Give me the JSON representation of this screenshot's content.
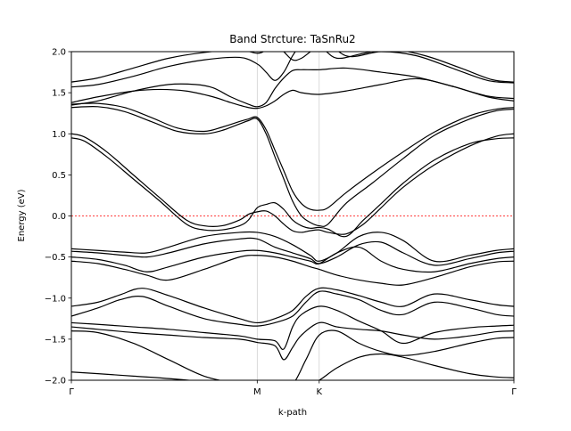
{
  "chart_data": {
    "type": "line",
    "title": "Band Strcture: TaSnRu2",
    "xlabel": "k-path",
    "ylabel": "Energy (eV)",
    "ylim": [
      -2.0,
      2.0
    ],
    "xlim": [
      0,
      1
    ],
    "yticks": [
      -2.0,
      -1.5,
      -1.0,
      -0.5,
      0.0,
      0.5,
      1.0,
      1.5,
      2.0
    ],
    "ytick_labels": [
      "−2.0",
      "−1.5",
      "−1.0",
      "−0.5",
      "0.0",
      "0.5",
      "1.0",
      "1.5",
      "2.0"
    ],
    "high_symmetry_points": [
      {
        "label": "Γ",
        "x": 0.0
      },
      {
        "label": "M",
        "x": 0.42
      },
      {
        "label": "K",
        "x": 0.56
      },
      {
        "label": "Γ",
        "x": 1.0
      }
    ],
    "fermi_level": 0.0,
    "fermi_line_color": "#ff0000",
    "band_color": "#000000",
    "grid": false,
    "series": [
      {
        "x": [
          0,
          0.06,
          0.14,
          0.22,
          0.3,
          0.38,
          0.42,
          0.46,
          0.5,
          0.54,
          0.56,
          0.6,
          0.65,
          0.7,
          0.75,
          0.82,
          0.9,
          0.96,
          1.0
        ],
        "values": [
          -1.9,
          -1.92,
          -1.95,
          -1.98,
          -2.02,
          -2.08,
          -2.15,
          -2.1,
          -2.05,
          -2.02,
          -2.0,
          -1.85,
          -1.72,
          -1.68,
          -1.72,
          -1.82,
          -1.92,
          -1.96,
          -1.97
        ]
      },
      {
        "x": [
          0,
          0.06,
          0.14,
          0.22,
          0.3,
          0.38,
          0.42,
          0.46,
          0.5,
          0.53,
          0.56,
          0.6,
          0.65,
          0.7,
          0.75,
          0.82,
          0.9,
          0.96,
          1.0
        ],
        "values": [
          -1.4,
          -1.42,
          -1.55,
          -1.75,
          -1.95,
          -2.05,
          -2.1,
          -2.15,
          -2.05,
          -1.75,
          -1.45,
          -1.4,
          -1.55,
          -1.65,
          -1.7,
          -1.65,
          -1.55,
          -1.49,
          -1.48
        ]
      },
      {
        "x": [
          0,
          0.06,
          0.14,
          0.22,
          0.3,
          0.38,
          0.42,
          0.46,
          0.48,
          0.5,
          0.52,
          0.56,
          0.6,
          0.65,
          0.7,
          0.75,
          0.82,
          0.9,
          0.96,
          1.0
        ],
        "values": [
          -1.35,
          -1.38,
          -1.42,
          -1.45,
          -1.48,
          -1.5,
          -1.54,
          -1.58,
          -1.75,
          -1.6,
          -1.45,
          -1.3,
          -1.35,
          -1.38,
          -1.4,
          -1.45,
          -1.5,
          -1.46,
          -1.41,
          -1.4
        ]
      },
      {
        "x": [
          0,
          0.06,
          0.14,
          0.22,
          0.3,
          0.38,
          0.42,
          0.46,
          0.48,
          0.5,
          0.52,
          0.56,
          0.6,
          0.65,
          0.7,
          0.75,
          0.82,
          0.9,
          0.96,
          1.0
        ],
        "values": [
          -1.3,
          -1.32,
          -1.35,
          -1.38,
          -1.42,
          -1.46,
          -1.5,
          -1.52,
          -1.62,
          -1.35,
          -1.2,
          -1.1,
          -1.15,
          -1.28,
          -1.4,
          -1.55,
          -1.42,
          -1.36,
          -1.34,
          -1.33
        ]
      },
      {
        "x": [
          0,
          0.06,
          0.11,
          0.16,
          0.22,
          0.3,
          0.38,
          0.42,
          0.46,
          0.5,
          0.53,
          0.56,
          0.6,
          0.65,
          0.7,
          0.75,
          0.82,
          0.9,
          0.96,
          1.0
        ],
        "values": [
          -1.22,
          -1.12,
          -1.02,
          -0.98,
          -1.1,
          -1.25,
          -1.32,
          -1.34,
          -1.3,
          -1.22,
          -1.05,
          -0.92,
          -0.95,
          -1.02,
          -1.15,
          -1.2,
          -1.05,
          -1.12,
          -1.2,
          -1.22
        ]
      },
      {
        "x": [
          0,
          0.06,
          0.11,
          0.16,
          0.22,
          0.3,
          0.38,
          0.42,
          0.46,
          0.5,
          0.53,
          0.56,
          0.6,
          0.65,
          0.7,
          0.75,
          0.82,
          0.9,
          0.96,
          1.0
        ],
        "values": [
          -1.1,
          -1.05,
          -0.96,
          -0.88,
          -0.97,
          -1.12,
          -1.25,
          -1.3,
          -1.25,
          -1.15,
          -0.98,
          -0.88,
          -0.9,
          -0.97,
          -1.05,
          -1.1,
          -0.95,
          -1.02,
          -1.08,
          -1.1
        ]
      },
      {
        "x": [
          0,
          0.06,
          0.12,
          0.17,
          0.22,
          0.3,
          0.38,
          0.42,
          0.46,
          0.5,
          0.54,
          0.56,
          0.6,
          0.65,
          0.7,
          0.75,
          0.82,
          0.9,
          0.96,
          1.0
        ],
        "values": [
          -0.55,
          -0.58,
          -0.65,
          -0.72,
          -0.78,
          -0.65,
          -0.5,
          -0.48,
          -0.5,
          -0.55,
          -0.62,
          -0.65,
          -0.72,
          -0.78,
          -0.82,
          -0.84,
          -0.75,
          -0.62,
          -0.56,
          -0.55
        ]
      },
      {
        "x": [
          0,
          0.06,
          0.12,
          0.17,
          0.22,
          0.3,
          0.38,
          0.42,
          0.46,
          0.5,
          0.54,
          0.56,
          0.6,
          0.65,
          0.7,
          0.75,
          0.82,
          0.9,
          0.96,
          1.0
        ],
        "values": [
          -0.5,
          -0.53,
          -0.6,
          -0.68,
          -0.62,
          -0.5,
          -0.43,
          -0.42,
          -0.45,
          -0.5,
          -0.55,
          -0.58,
          -0.45,
          -0.38,
          -0.55,
          -0.65,
          -0.68,
          -0.58,
          -0.52,
          -0.5
        ]
      },
      {
        "x": [
          0,
          0.06,
          0.12,
          0.17,
          0.22,
          0.3,
          0.38,
          0.42,
          0.46,
          0.5,
          0.54,
          0.56,
          0.6,
          0.65,
          0.7,
          0.75,
          0.82,
          0.9,
          0.96,
          1.0
        ],
        "values": [
          -0.43,
          -0.45,
          -0.48,
          -0.5,
          -0.45,
          -0.34,
          -0.28,
          -0.28,
          -0.38,
          -0.45,
          -0.52,
          -0.58,
          -0.5,
          -0.35,
          -0.32,
          -0.45,
          -0.6,
          -0.52,
          -0.45,
          -0.43
        ]
      },
      {
        "x": [
          0,
          0.06,
          0.12,
          0.17,
          0.22,
          0.3,
          0.38,
          0.42,
          0.46,
          0.5,
          0.54,
          0.56,
          0.6,
          0.65,
          0.7,
          0.75,
          0.82,
          0.9,
          0.96,
          1.0
        ],
        "values": [
          -0.4,
          -0.42,
          -0.44,
          -0.45,
          -0.38,
          -0.25,
          -0.2,
          -0.2,
          -0.25,
          -0.35,
          -0.48,
          -0.55,
          -0.45,
          -0.25,
          -0.2,
          -0.3,
          -0.55,
          -0.48,
          -0.42,
          -0.4
        ]
      },
      {
        "x": [
          0,
          0.03,
          0.08,
          0.14,
          0.2,
          0.26,
          0.3,
          0.34,
          0.38,
          0.4,
          0.42,
          0.44,
          0.46,
          0.48,
          0.5,
          0.52,
          0.54,
          0.56,
          0.58,
          0.62,
          0.66,
          0.7,
          0.75,
          0.82,
          0.9,
          0.96,
          1.0
        ],
        "values": [
          1.0,
          0.96,
          0.78,
          0.5,
          0.22,
          -0.05,
          -0.12,
          -0.12,
          -0.05,
          0.02,
          0.05,
          0.06,
          0.0,
          -0.1,
          -0.18,
          -0.2,
          -0.18,
          -0.17,
          -0.2,
          -0.22,
          -0.1,
          0.1,
          0.35,
          0.62,
          0.85,
          0.97,
          1.0
        ]
      },
      {
        "x": [
          0,
          0.03,
          0.08,
          0.14,
          0.2,
          0.26,
          0.3,
          0.34,
          0.38,
          0.4,
          0.42,
          0.44,
          0.46,
          0.48,
          0.5,
          0.52,
          0.54,
          0.56,
          0.58,
          0.62,
          0.66,
          0.7,
          0.75,
          0.82,
          0.9,
          0.96,
          1.0
        ],
        "values": [
          0.95,
          0.91,
          0.72,
          0.45,
          0.18,
          -0.1,
          -0.17,
          -0.17,
          -0.12,
          -0.05,
          0.1,
          0.14,
          0.16,
          0.08,
          -0.05,
          -0.12,
          -0.15,
          -0.14,
          -0.16,
          -0.25,
          -0.05,
          0.15,
          0.4,
          0.68,
          0.88,
          0.94,
          0.95
        ]
      },
      {
        "x": [
          0,
          0.06,
          0.12,
          0.18,
          0.24,
          0.3,
          0.34,
          0.38,
          0.4,
          0.42,
          0.44,
          0.46,
          0.48,
          0.5,
          0.52,
          0.54,
          0.56,
          0.58,
          0.62,
          0.68,
          0.75,
          0.82,
          0.9,
          0.96,
          1.0
        ],
        "values": [
          1.36,
          1.37,
          1.32,
          1.2,
          1.07,
          1.03,
          1.08,
          1.15,
          1.18,
          1.2,
          1.05,
          0.8,
          0.55,
          0.3,
          0.15,
          0.08,
          0.07,
          0.1,
          0.28,
          0.52,
          0.78,
          1.02,
          1.22,
          1.3,
          1.32
        ]
      },
      {
        "x": [
          0,
          0.06,
          0.12,
          0.18,
          0.24,
          0.3,
          0.34,
          0.38,
          0.4,
          0.42,
          0.44,
          0.46,
          0.48,
          0.5,
          0.52,
          0.54,
          0.56,
          0.58,
          0.62,
          0.68,
          0.75,
          0.82,
          0.9,
          0.96,
          1.0
        ],
        "values": [
          1.32,
          1.33,
          1.27,
          1.15,
          1.03,
          1.0,
          1.04,
          1.12,
          1.16,
          1.18,
          1.0,
          0.72,
          0.45,
          0.18,
          0.0,
          -0.08,
          -0.12,
          -0.1,
          0.15,
          0.4,
          0.7,
          0.98,
          1.18,
          1.28,
          1.3
        ]
      },
      {
        "x": [
          0,
          0.06,
          0.14,
          0.2,
          0.26,
          0.32,
          0.36,
          0.4,
          0.42,
          0.44,
          0.46,
          0.48,
          0.5,
          0.52,
          0.56,
          0.62,
          0.7,
          0.78,
          0.86,
          0.94,
          1.0
        ],
        "values": [
          1.38,
          1.45,
          1.52,
          1.54,
          1.52,
          1.45,
          1.38,
          1.32,
          1.31,
          1.34,
          1.4,
          1.48,
          1.53,
          1.5,
          1.48,
          1.52,
          1.6,
          1.67,
          1.58,
          1.45,
          1.4
        ]
      },
      {
        "x": [
          0,
          0.06,
          0.14,
          0.22,
          0.28,
          0.32,
          0.36,
          0.4,
          0.42,
          0.44,
          0.46,
          0.48,
          0.5,
          0.52,
          0.56,
          0.62,
          0.7,
          0.78,
          0.86,
          0.94,
          1.0
        ],
        "values": [
          1.35,
          1.4,
          1.52,
          1.6,
          1.6,
          1.56,
          1.45,
          1.36,
          1.33,
          1.38,
          1.55,
          1.68,
          1.77,
          1.78,
          1.78,
          1.8,
          1.75,
          1.69,
          1.58,
          1.46,
          1.43
        ]
      },
      {
        "x": [
          0,
          0.06,
          0.14,
          0.22,
          0.3,
          0.38,
          0.42,
          0.44,
          0.46,
          0.48,
          0.5,
          0.52,
          0.54,
          0.56,
          0.62,
          0.7,
          0.78,
          0.86,
          0.94,
          1.0
        ],
        "values": [
          1.57,
          1.6,
          1.7,
          1.82,
          1.9,
          1.93,
          1.85,
          1.75,
          1.65,
          1.75,
          1.95,
          2.1,
          2.2,
          2.25,
          1.95,
          2.0,
          1.95,
          1.8,
          1.65,
          1.62
        ]
      },
      {
        "x": [
          0,
          0.06,
          0.14,
          0.22,
          0.3,
          0.38,
          0.42,
          0.44,
          0.46,
          0.48,
          0.5,
          0.52,
          0.56,
          0.6,
          0.66,
          0.72,
          0.8,
          0.88,
          0.95,
          1.0
        ],
        "values": [
          1.63,
          1.68,
          1.8,
          1.92,
          1.99,
          2.02,
          1.98,
          2.02,
          2.1,
          2.0,
          1.9,
          1.92,
          2.05,
          1.92,
          1.98,
          2.03,
          1.95,
          1.8,
          1.66,
          1.63
        ]
      }
    ]
  }
}
